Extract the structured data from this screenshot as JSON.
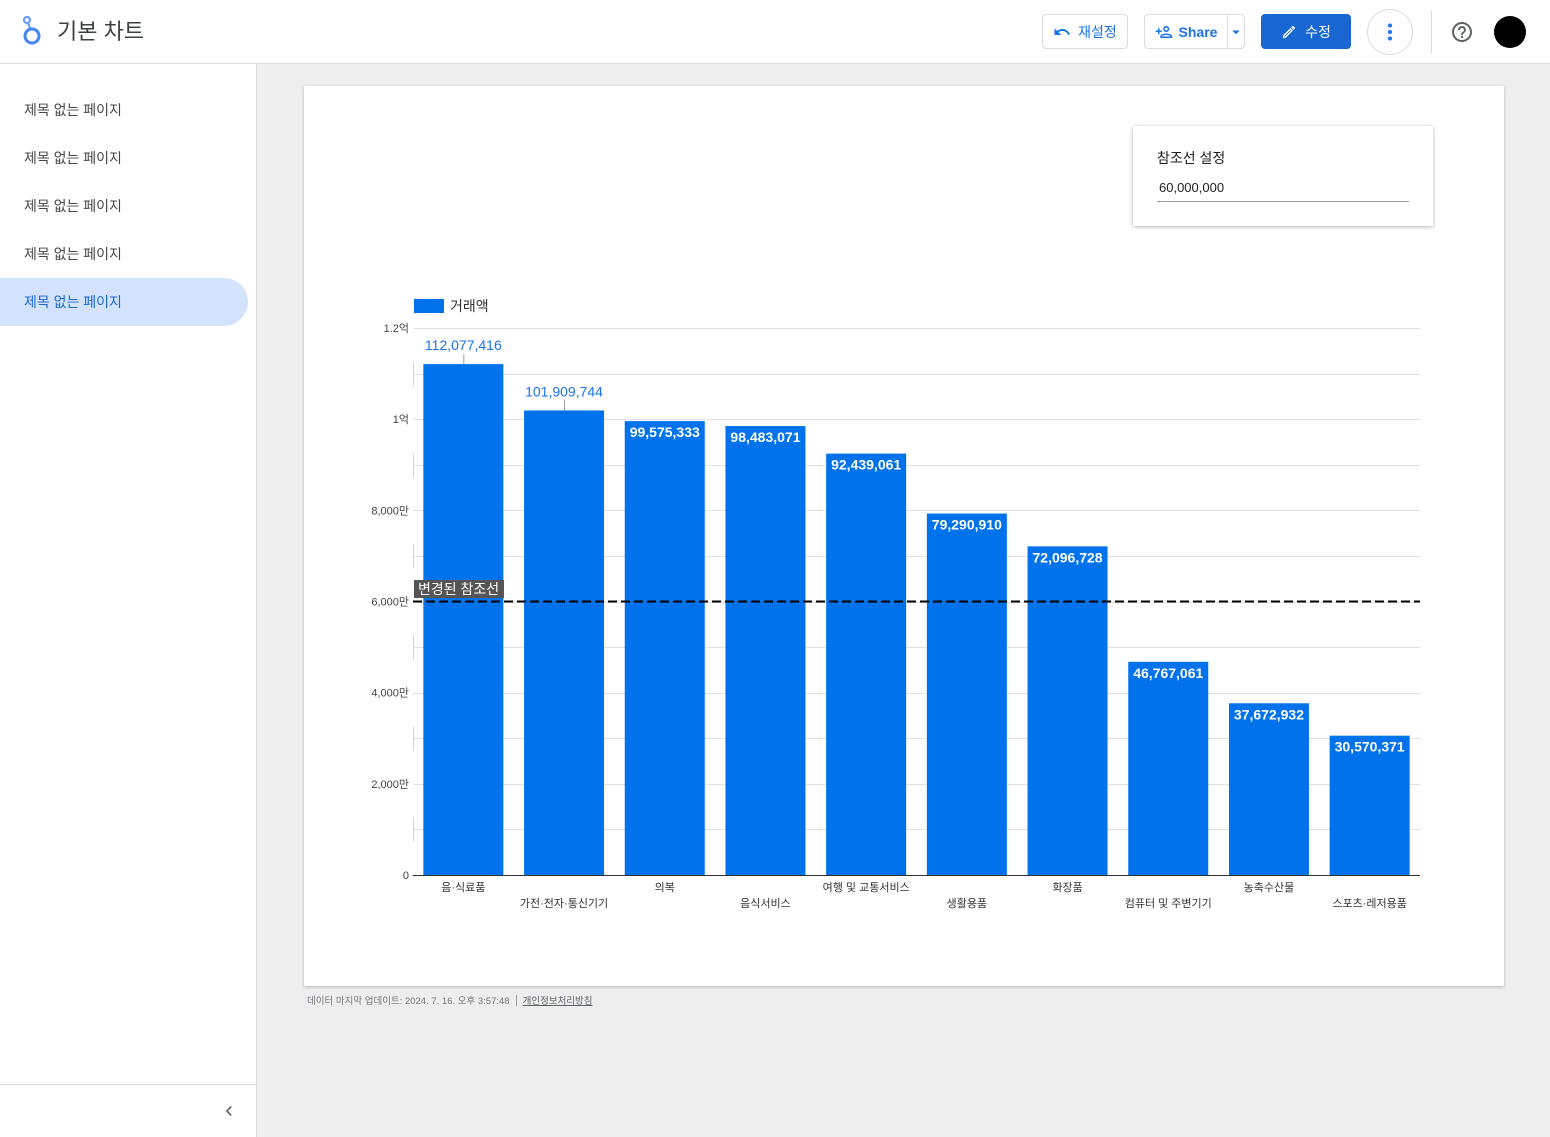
{
  "header": {
    "title": "기본 차트",
    "reset_label": "재설정",
    "share_label": "Share",
    "edit_label": "수정"
  },
  "icons": {
    "logo": "looker-studio-logo-icon",
    "reset": "undo-icon",
    "share": "person-add-icon",
    "share_menu": "arrow-drop-down-icon",
    "edit": "pencil-icon",
    "more": "more-vert-icon",
    "help": "help-icon",
    "collapse": "chevron-left-icon"
  },
  "sidebar": {
    "pages": [
      {
        "label": "제목 없는 페이지"
      },
      {
        "label": "제목 없는 페이지"
      },
      {
        "label": "제목 없는 페이지"
      },
      {
        "label": "제목 없는 페이지"
      },
      {
        "label": "제목 없는 페이지"
      }
    ],
    "active_index": 4
  },
  "controls": {
    "reference_line": {
      "label": "참조선 설정",
      "value": "60,000,000"
    }
  },
  "footer": {
    "last_updated": "데이터 마지막 업데이트: 2024. 7. 16. 오후 3:57:48",
    "privacy_link": "개인정보처리방침"
  },
  "colors": {
    "accent": "#1a73e8",
    "bar": "#0072eb",
    "reference_line": "#000000",
    "selected_page_bg": "#d3e3fd"
  },
  "chart_data": {
    "type": "bar",
    "categories": [
      "음·식료품",
      "가전·전자·통신기기",
      "의복",
      "음식서비스",
      "여행 및 교통서비스",
      "생활용품",
      "화장품",
      "컴퓨터 및 주변기기",
      "농축수산물",
      "스포츠·레저용품"
    ],
    "series": [
      {
        "name": "거래액",
        "values": [
          112077416,
          101909744,
          99575333,
          98483071,
          92439061,
          79290910,
          72096728,
          46767061,
          37672932,
          30570371
        ]
      }
    ],
    "data_labels": [
      "112,077,416",
      "101,909,744",
      "99,575,333",
      "98,483,071",
      "92,439,061",
      "79,290,910",
      "72,096,728",
      "46,767,061",
      "37,672,932",
      "30,570,371"
    ],
    "ylim": [
      0,
      120000000
    ],
    "yticks": [
      0,
      20000000,
      40000000,
      60000000,
      80000000,
      100000000,
      120000000
    ],
    "ytick_labels": [
      "0",
      "2,000만",
      "4,000만",
      "6,000만",
      "8,000만",
      "1억",
      "1.2억"
    ],
    "grid": true,
    "legend": "top-left",
    "reference_line": {
      "value": 60000000,
      "label": "변경된 참조선",
      "style": "dashed"
    }
  }
}
